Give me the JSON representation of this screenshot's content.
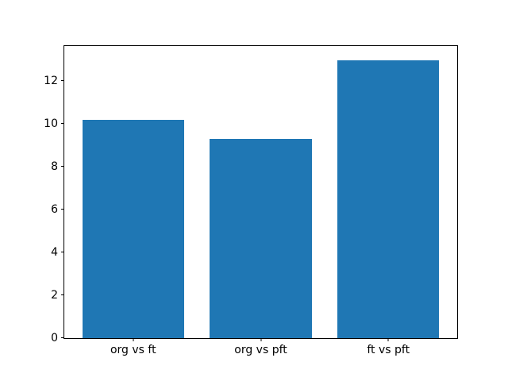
{
  "chart_data": {
    "type": "bar",
    "categories": [
      "org vs ft",
      "org vs pft",
      "ft vs pft"
    ],
    "values": [
      10.2,
      9.3,
      13.0
    ],
    "bar_color": "#1f77b4",
    "bar_width": 0.8,
    "yticks": [
      0,
      2,
      4,
      6,
      8,
      10,
      12
    ],
    "ylim": [
      0,
      13.65
    ],
    "xlim": [
      -0.54,
      2.54
    ],
    "grid": false,
    "legend": "none",
    "spine_color": "#000000",
    "background_color": "#ffffff"
  }
}
